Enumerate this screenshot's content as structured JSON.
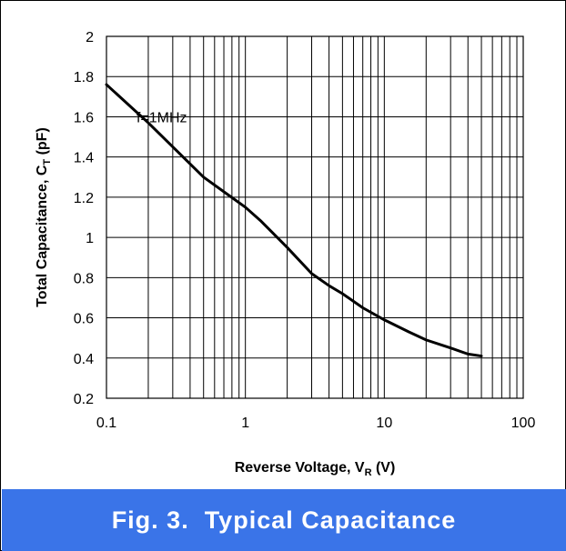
{
  "theme": {
    "caption_bg": "#3a74e8",
    "caption_fg": "#ffffff",
    "line_color": "#000000",
    "grid_color": "#000000"
  },
  "caption": {
    "text": "Fig. 3.  Typical Capacitance"
  },
  "chart_data": {
    "type": "line",
    "title": "",
    "xlabel": "Reverse Voltage, V",
    "xlabel_sub": "R",
    "xlabel_unit": " (V)",
    "ylabel": "Total Capacitance, C",
    "ylabel_sub": "T",
    "ylabel_unit": " (pF)",
    "x_scale": "log",
    "xlim": [
      0.1,
      100
    ],
    "ylim": [
      0.2,
      2
    ],
    "grid": true,
    "legend": "none",
    "x_ticks": [
      {
        "value": 0.1,
        "label": "0.1"
      },
      {
        "value": 1,
        "label": "1"
      },
      {
        "value": 10,
        "label": "10"
      },
      {
        "value": 100,
        "label": "100"
      }
    ],
    "y_ticks": [
      {
        "value": 0.2,
        "label": "0.2"
      },
      {
        "value": 0.4,
        "label": "0.4"
      },
      {
        "value": 0.6,
        "label": "0.6"
      },
      {
        "value": 0.8,
        "label": "0.8"
      },
      {
        "value": 1.0,
        "label": "1"
      },
      {
        "value": 1.2,
        "label": "1.2"
      },
      {
        "value": 1.4,
        "label": "1.4"
      },
      {
        "value": 1.6,
        "label": "1.6"
      },
      {
        "value": 1.8,
        "label": "1.8"
      },
      {
        "value": 2.0,
        "label": "2"
      }
    ],
    "annotations": [
      {
        "text": "f=1MHz",
        "x": 0.25,
        "y": 1.6
      }
    ],
    "series": [
      {
        "x": [
          0.1,
          0.2,
          0.5,
          1,
          1.3,
          2,
          3,
          4,
          5,
          7,
          10,
          15,
          20,
          30,
          40,
          50
        ],
        "y": [
          1.76,
          1.57,
          1.3,
          1.15,
          1.08,
          0.95,
          0.82,
          0.76,
          0.72,
          0.65,
          0.59,
          0.53,
          0.49,
          0.45,
          0.42,
          0.41
        ]
      }
    ]
  }
}
